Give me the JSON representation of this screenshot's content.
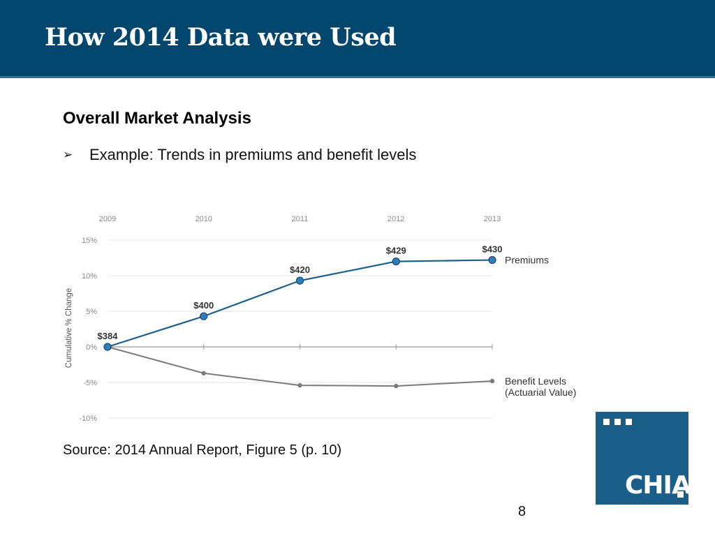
{
  "slide": {
    "title": "How 2014 Data were Used",
    "heading": "Overall Market Analysis",
    "bullet": "Example: Trends in premiums and benefit levels",
    "source": "Source: 2014 Annual Report, Figure 5 (p. 10)",
    "page_number": "8"
  },
  "logo": {
    "text": "CHIA"
  },
  "colors": {
    "title_bar": "#00466d",
    "premiums_line": "#1f5f87",
    "premiums_marker": "#2f7ebc",
    "benefit_line": "#7a7a7a",
    "logo_bg": "#1a5f8a"
  },
  "chart_data": {
    "type": "line",
    "x": [
      "2009",
      "2010",
      "2011",
      "2012",
      "2013"
    ],
    "ylabel": "Cumulative % Change",
    "ylim": [
      -10,
      15
    ],
    "yticks": [
      15,
      10,
      5,
      0,
      -5,
      -10
    ],
    "ytick_labels": [
      "15%",
      "10%",
      "5%",
      "0%",
      "-5%",
      "-10%"
    ],
    "grid": true,
    "x_axis_position": "top",
    "series": [
      {
        "name": "Premiums",
        "values": [
          0,
          4.3,
          9.3,
          12.0,
          12.2
        ],
        "data_labels": [
          "$384",
          "$400",
          "$420",
          "$429",
          "$430"
        ],
        "markers": true
      },
      {
        "name": "Benefit Levels",
        "name_sub": "(Actuarial Value)",
        "values": [
          0,
          -3.7,
          -5.4,
          -5.5,
          -4.8
        ],
        "markers": true
      }
    ]
  }
}
